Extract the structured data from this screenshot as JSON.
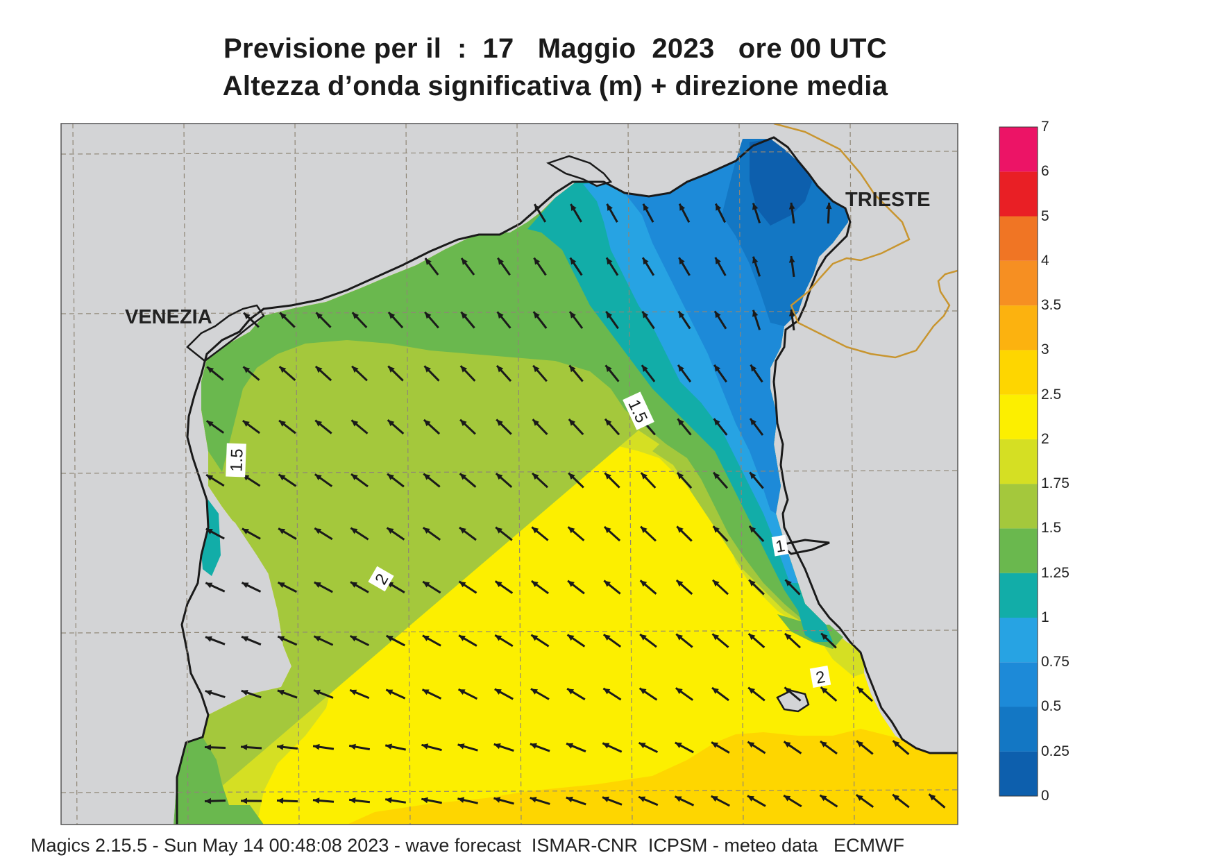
{
  "title": {
    "line1": "Previsione per il  :  17   Maggio  2023   ore 00 UTC",
    "line2": "Altezza d’onda significativa (m) + direzione media"
  },
  "footer": "Magics 2.15.5 - Sun May 14 00:48:08 2023 - wave forecast  ISMAR-CNR  ICPSM - meteo data   ECMWF",
  "cities": {
    "venezia": "VENEZIA",
    "trieste": "TRIESTE"
  },
  "contour_labels": [
    "1.5",
    "1.5",
    "1",
    "2",
    "2"
  ],
  "legend": {
    "labels": [
      "0",
      "0.25",
      "0.5",
      "0.75",
      "1",
      "1.25",
      "1.5",
      "1.75",
      "2",
      "2.5",
      "3",
      "3.5",
      "4",
      "5",
      "6",
      "7"
    ],
    "colors": [
      "#0d5fad",
      "#1377c4",
      "#1d8ad8",
      "#27a3e3",
      "#12ada8",
      "#6ab84e",
      "#a4c83c",
      "#d5df23",
      "#fcef00",
      "#fed600",
      "#fcb20f",
      "#f68f22",
      "#f07524",
      "#e91f25",
      "#ec1466"
    ]
  },
  "colors": {
    "land": "#d3d4d6",
    "coast": "#1a1a1a",
    "border": "#c8952f",
    "grid": "#8f8676",
    "arrow": "#1a1a1a"
  }
}
